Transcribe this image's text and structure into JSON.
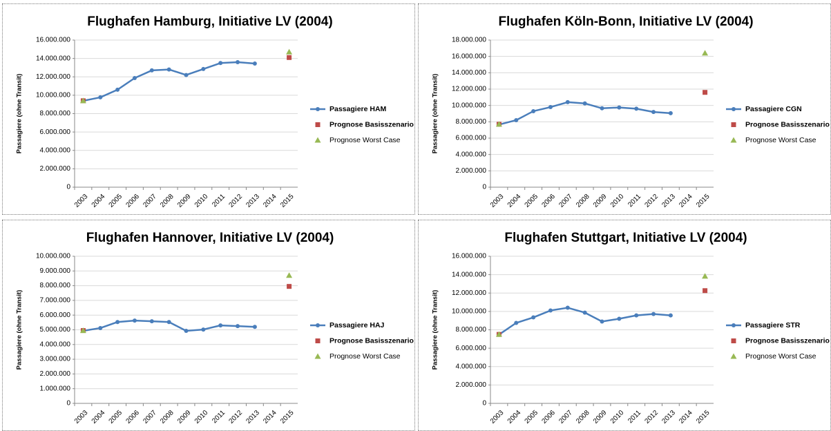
{
  "chart_data": [
    {
      "type": "line",
      "title": "Flughafen Hamburg, Initiative LV (2004)",
      "y_label": "Passagiere (ohne Transit)",
      "categories": [
        "2003",
        "2004",
        "2005",
        "2006",
        "2007",
        "2008",
        "2009",
        "2010",
        "2011",
        "2012",
        "2013",
        "2014",
        "2015"
      ],
      "series": [
        {
          "name": "Passagiere HAM",
          "color": "#4a7ebb",
          "marker": "circle",
          "line": true,
          "values": [
            9390000,
            9770000,
            10600000,
            11870000,
            12700000,
            12800000,
            12200000,
            12850000,
            13500000,
            13600000,
            13450000,
            null,
            null
          ]
        },
        {
          "name": "Prognose Basisszenario",
          "color": "#be4b48",
          "marker": "square",
          "line": false,
          "values": [
            9400000,
            null,
            null,
            null,
            null,
            null,
            null,
            null,
            null,
            null,
            null,
            null,
            14100000
          ]
        },
        {
          "name": "Prognose Worst Case",
          "color": "#98b954",
          "marker": "triangle",
          "line": false,
          "values": [
            9400000,
            null,
            null,
            null,
            null,
            null,
            null,
            null,
            null,
            null,
            null,
            null,
            14700000
          ]
        }
      ],
      "ylim": [
        0,
        16000000
      ],
      "yticks": [
        0,
        {
          "value": 2000000,
          "label": "2.000.000"
        },
        {
          "value": 4000000,
          "label": "4.000.000"
        },
        {
          "value": 6000000,
          "label": "6.000.000"
        },
        {
          "value": 8000000,
          "label": "8.000.000"
        },
        {
          "value": 10000000,
          "label": "10.000.000"
        },
        {
          "value": 12000000,
          "label": "12.000.000"
        },
        {
          "value": 14000000,
          "label": "14.000.000"
        },
        {
          "value": 16000000,
          "label": "16.000.000"
        }
      ],
      "grid": true,
      "legend": "right"
    },
    {
      "type": "line",
      "title": "Flughafen Köln-Bonn, Initiative LV (2004)",
      "y_label": "Passagiere (ohne Transit)",
      "categories": [
        "2003",
        "2004",
        "2005",
        "2006",
        "2007",
        "2008",
        "2009",
        "2010",
        "2011",
        "2012",
        "2013",
        "2014",
        "2015"
      ],
      "series": [
        {
          "name": "Passagiere CGN",
          "color": "#4a7ebb",
          "marker": "circle",
          "line": true,
          "values": [
            7650000,
            8200000,
            9300000,
            9800000,
            10400000,
            10250000,
            9650000,
            9750000,
            9600000,
            9200000,
            9050000,
            null,
            null
          ]
        },
        {
          "name": "Prognose Basisszenario",
          "color": "#be4b48",
          "marker": "square",
          "line": false,
          "values": [
            7700000,
            null,
            null,
            null,
            null,
            null,
            null,
            null,
            null,
            null,
            null,
            null,
            11600000
          ]
        },
        {
          "name": "Prognose Worst Case",
          "color": "#98b954",
          "marker": "triangle",
          "line": false,
          "values": [
            7700000,
            null,
            null,
            null,
            null,
            null,
            null,
            null,
            null,
            null,
            null,
            null,
            16400000
          ]
        }
      ],
      "ylim": [
        0,
        18000000
      ],
      "yticks": [
        0,
        {
          "value": 2000000,
          "label": "2.000.000"
        },
        {
          "value": 4000000,
          "label": "4.000.000"
        },
        {
          "value": 6000000,
          "label": "6.000.000"
        },
        {
          "value": 8000000,
          "label": "8.000.000"
        },
        {
          "value": 10000000,
          "label": "10.000.000"
        },
        {
          "value": 12000000,
          "label": "12.000.000"
        },
        {
          "value": 14000000,
          "label": "14.000.000"
        },
        {
          "value": 16000000,
          "label": "16.000.000"
        },
        {
          "value": 18000000,
          "label": "18.000.000"
        }
      ],
      "grid": true,
      "legend": "right"
    },
    {
      "type": "line",
      "title": "Flughafen Hannover, Initiative LV (2004)",
      "y_label": "Passagiere (ohne Transit)",
      "categories": [
        "2003",
        "2004",
        "2005",
        "2006",
        "2007",
        "2008",
        "2009",
        "2010",
        "2011",
        "2012",
        "2013",
        "2014",
        "2015"
      ],
      "series": [
        {
          "name": "Passagiere HAJ",
          "color": "#4a7ebb",
          "marker": "circle",
          "line": true,
          "values": [
            4930000,
            5120000,
            5530000,
            5630000,
            5580000,
            5530000,
            4930000,
            5020000,
            5300000,
            5250000,
            5200000,
            null,
            null
          ]
        },
        {
          "name": "Prognose Basisszenario",
          "color": "#be4b48",
          "marker": "square",
          "line": false,
          "values": [
            4950000,
            null,
            null,
            null,
            null,
            null,
            null,
            null,
            null,
            null,
            null,
            null,
            7950000
          ]
        },
        {
          "name": "Prognose Worst Case",
          "color": "#98b954",
          "marker": "triangle",
          "line": false,
          "values": [
            4950000,
            null,
            null,
            null,
            null,
            null,
            null,
            null,
            null,
            null,
            null,
            null,
            8700000
          ]
        }
      ],
      "ylim": [
        0,
        10000000
      ],
      "yticks": [
        0,
        {
          "value": 1000000,
          "label": "1.000.000"
        },
        {
          "value": 2000000,
          "label": "2.000.000"
        },
        {
          "value": 3000000,
          "label": "3.000.000"
        },
        {
          "value": 4000000,
          "label": "4.000.000"
        },
        {
          "value": 5000000,
          "label": "5.000.000"
        },
        {
          "value": 6000000,
          "label": "6.000.000"
        },
        {
          "value": 7000000,
          "label": "7.000.000"
        },
        {
          "value": 8000000,
          "label": "8.000.000"
        },
        {
          "value": 9000000,
          "label": "9.000.000"
        },
        {
          "value": 10000000,
          "label": "10.000.000"
        }
      ],
      "grid": true,
      "legend": "right"
    },
    {
      "type": "line",
      "title": "Flughafen Stuttgart, Initiative LV (2004)",
      "y_label": "Passagiere (ohne Transit)",
      "categories": [
        "2003",
        "2004",
        "2005",
        "2006",
        "2007",
        "2008",
        "2009",
        "2010",
        "2011",
        "2012",
        "2013",
        "2014",
        "2015"
      ],
      "series": [
        {
          "name": "Passagiere STR",
          "color": "#4a7ebb",
          "marker": "circle",
          "line": true,
          "values": [
            7480000,
            8750000,
            9350000,
            10100000,
            10400000,
            9870000,
            8900000,
            9200000,
            9570000,
            9720000,
            9570000,
            null,
            null
          ]
        },
        {
          "name": "Prognose Basisszenario",
          "color": "#be4b48",
          "marker": "square",
          "line": false,
          "values": [
            7500000,
            null,
            null,
            null,
            null,
            null,
            null,
            null,
            null,
            null,
            null,
            null,
            12260000
          ]
        },
        {
          "name": "Prognose Worst Case",
          "color": "#98b954",
          "marker": "triangle",
          "line": false,
          "values": [
            7500000,
            null,
            null,
            null,
            null,
            null,
            null,
            null,
            null,
            null,
            null,
            null,
            13830000
          ]
        }
      ],
      "ylim": [
        0,
        16000000
      ],
      "yticks": [
        0,
        {
          "value": 2000000,
          "label": "2.000.000"
        },
        {
          "value": 4000000,
          "label": "4.000.000"
        },
        {
          "value": 6000000,
          "label": "6.000.000"
        },
        {
          "value": 8000000,
          "label": "8.000.000"
        },
        {
          "value": 10000000,
          "label": "10.000.000"
        },
        {
          "value": 12000000,
          "label": "12.000.000"
        },
        {
          "value": 14000000,
          "label": "14.000.000"
        },
        {
          "value": 16000000,
          "label": "16.000.000"
        }
      ],
      "grid": true,
      "legend": "right"
    }
  ]
}
